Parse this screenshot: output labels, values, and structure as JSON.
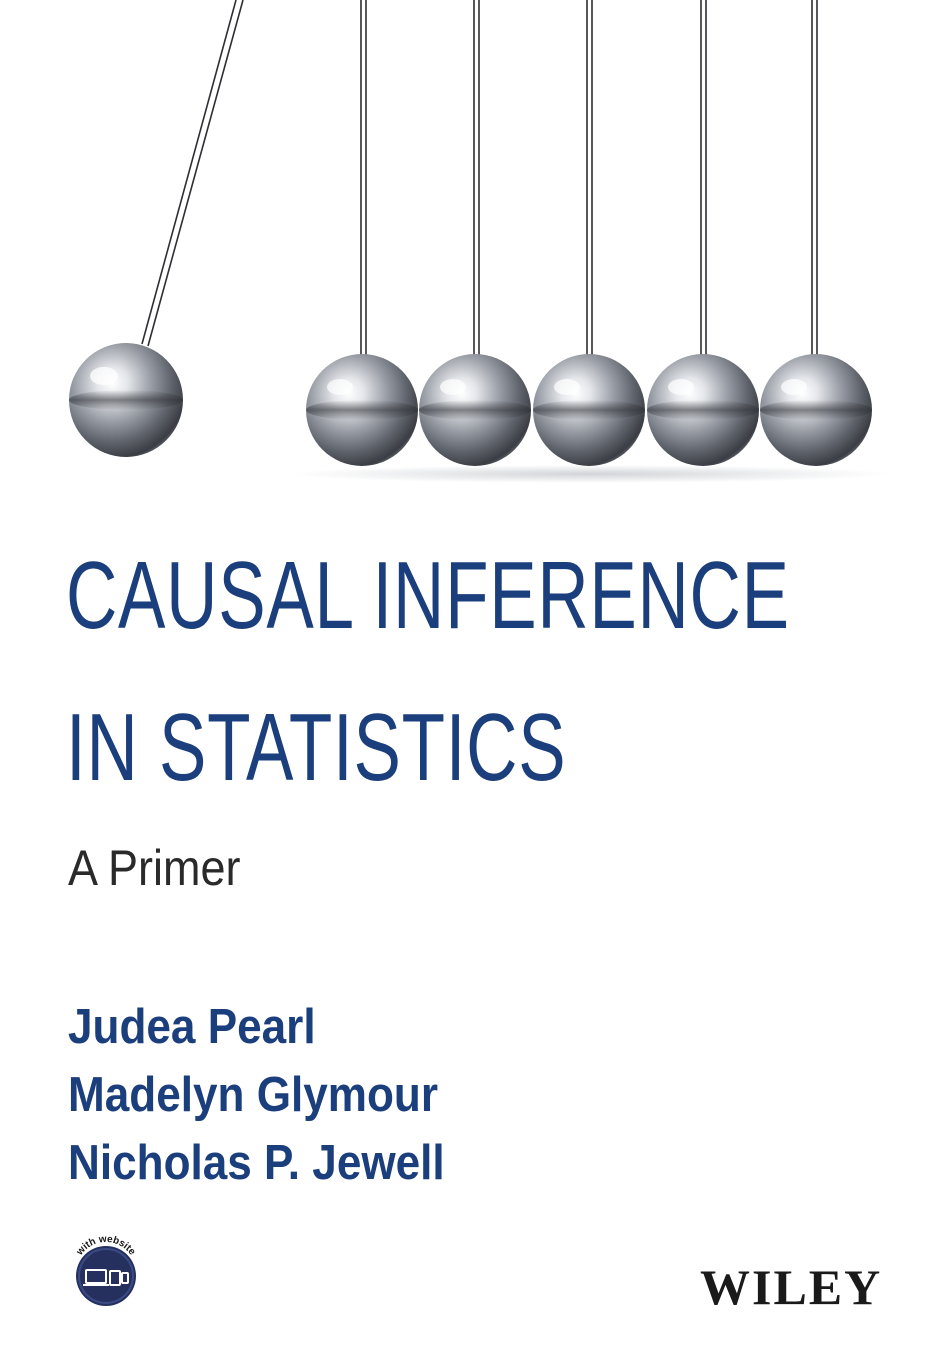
{
  "cover": {
    "title_line_1": "CAUSAL INFERENCE",
    "title_line_2": "IN STATISTICS",
    "subtitle": "A Primer",
    "authors": [
      "Judea Pearl",
      "Madelyn Glymour",
      "Nicholas P. Jewell"
    ],
    "badge_text": "with website",
    "publisher": "WILEY"
  },
  "colors": {
    "title_blue": "#1b3e7c",
    "subtitle_gray": "#2a2a2a",
    "badge_navy": "#25305e",
    "publisher_black": "#1a1a1a"
  },
  "icons": {
    "artwork": "newtons-cradle-illustration",
    "badge": "devices-icon"
  }
}
